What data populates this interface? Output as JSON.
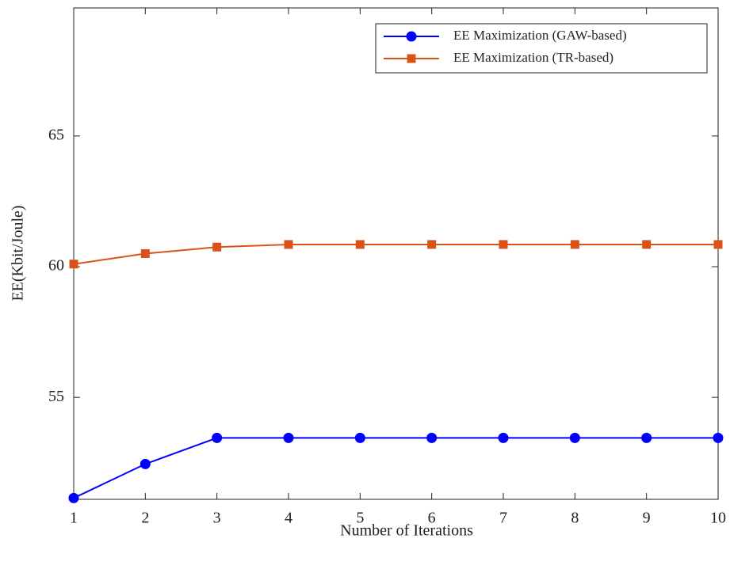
{
  "chart_data": {
    "type": "line",
    "x_label": "Number of Iterations",
    "y_label": "EE(Kbit/Joule)",
    "x": [
      1,
      2,
      3,
      4,
      5,
      6,
      7,
      8,
      9,
      10
    ],
    "series": [
      {
        "name": "EE Maximization (GAW-based)",
        "color": "#0000ff",
        "marker": "circle",
        "values": [
          51.15,
          52.45,
          53.45,
          53.45,
          53.45,
          53.45,
          53.45,
          53.45,
          53.45,
          53.45
        ]
      },
      {
        "name": "EE Maximization (TR-based)",
        "color": "#d95319",
        "marker": "square",
        "values": [
          60.1,
          60.5,
          60.75,
          60.85,
          60.85,
          60.85,
          60.85,
          60.85,
          60.85,
          60.85
        ]
      }
    ],
    "xlim": [
      1,
      10
    ],
    "xticks": [
      1,
      2,
      3,
      4,
      5,
      6,
      7,
      8,
      9,
      10
    ],
    "ylim": [
      51.1,
      69.9
    ],
    "yticks": [
      55,
      60,
      65
    ],
    "grid": false,
    "legend": "upper right"
  }
}
